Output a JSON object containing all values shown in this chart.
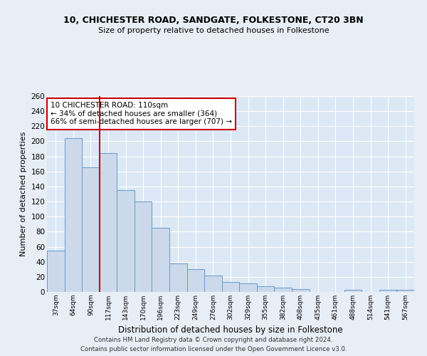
{
  "title": "10, CHICHESTER ROAD, SANDGATE, FOLKESTONE, CT20 3BN",
  "subtitle": "Size of property relative to detached houses in Folkestone",
  "xlabel": "Distribution of detached houses by size in Folkestone",
  "ylabel": "Number of detached properties",
  "categories": [
    "37sqm",
    "64sqm",
    "90sqm",
    "117sqm",
    "143sqm",
    "170sqm",
    "196sqm",
    "223sqm",
    "249sqm",
    "276sqm",
    "302sqm",
    "329sqm",
    "355sqm",
    "382sqm",
    "408sqm",
    "435sqm",
    "461sqm",
    "488sqm",
    "514sqm",
    "541sqm",
    "567sqm"
  ],
  "values": [
    55,
    204,
    165,
    184,
    135,
    120,
    85,
    38,
    30,
    22,
    13,
    11,
    8,
    6,
    4,
    0,
    0,
    3,
    0,
    3,
    3
  ],
  "bar_color": "#ccd9ea",
  "bar_edge_color": "#6699cc",
  "background_color": "#dce8f5",
  "grid_color": "#ffffff",
  "fig_background": "#e8eef5",
  "vline_x": 2.5,
  "vline_color": "#cc0000",
  "annotation_text": "10 CHICHESTER ROAD: 110sqm\n← 34% of detached houses are smaller (364)\n66% of semi-detached houses are larger (707) →",
  "annotation_box_color": "#cc0000",
  "ylim": [
    0,
    260
  ],
  "yticks": [
    0,
    20,
    40,
    60,
    80,
    100,
    120,
    140,
    160,
    180,
    200,
    220,
    240,
    260
  ],
  "footer_line1": "Contains HM Land Registry data © Crown copyright and database right 2024.",
  "footer_line2": "Contains public sector information licensed under the Open Government Licence v3.0."
}
